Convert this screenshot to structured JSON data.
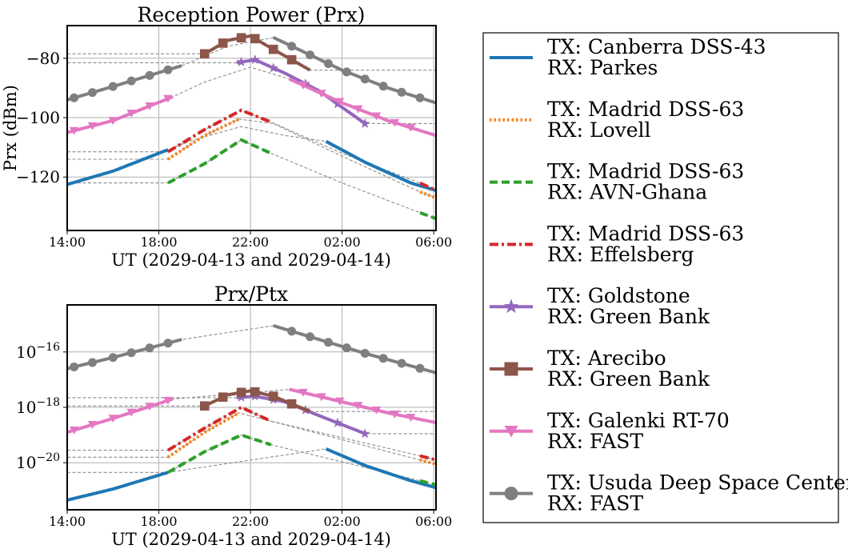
{
  "chart_data": [
    {
      "type": "line",
      "title": "Reception Power (Prx)",
      "xlabel": "UT (2029-04-13 and 2029-04-14)",
      "ylabel": "Prx (dBm)",
      "x_ticks": [
        "14:00",
        "18:00",
        "22:00",
        "02:00",
        "06:00"
      ],
      "x_range_hours": [
        14,
        30.1
      ],
      "y_scale": "linear",
      "ylim": [
        -138,
        -69
      ],
      "y_ticks": [
        -120,
        -100,
        -80
      ],
      "y_tick_labels": [
        "−120",
        "−100",
        "−80"
      ],
      "grid": true,
      "series": [
        {
          "name": "TX: Canberra DSS-43 RX: Parkes",
          "visible_hours": [
            [
              14.0,
              18.4
            ],
            [
              25.3,
              30.1
            ]
          ],
          "x": [
            14,
            16,
            18,
            19.5,
            21.6,
            23.5,
            25.3,
            27,
            29,
            30.1
          ],
          "y": [
            -122.5,
            -118,
            -112,
            -107.5,
            -103,
            -106,
            -108,
            -115,
            -122,
            -124.5
          ]
        },
        {
          "name": "TX: Madrid DSS-63 RX: Lovell",
          "visible_hours": [
            [
              18.4,
              21.5
            ],
            [
              29.4,
              30.1
            ]
          ],
          "x": [
            18.4,
            20,
            21.5,
            23,
            26,
            29.4,
            30.1
          ],
          "y": [
            -114,
            -106,
            -100.5,
            -102,
            -113,
            -125,
            -127
          ]
        },
        {
          "name": "TX: Madrid DSS-63 RX: AVN-Ghana",
          "visible_hours": [
            [
              18.4,
              22.9
            ],
            [
              29.4,
              30.1
            ]
          ],
          "x": [
            18.4,
            20,
            21.6,
            22.9,
            26,
            29.4,
            30.1
          ],
          "y": [
            -122,
            -115.5,
            -107.5,
            -112,
            -122,
            -132,
            -134
          ]
        },
        {
          "name": "TX: Madrid DSS-63 RX: Effelsberg",
          "visible_hours": [
            [
              18.4,
              22.9
            ],
            [
              29.4,
              30.1
            ]
          ],
          "x": [
            18.4,
            20,
            21.6,
            22.9,
            26,
            29.4,
            30.1
          ],
          "y": [
            -111.5,
            -104,
            -97.5,
            -101.5,
            -112,
            -122,
            -124.5
          ]
        },
        {
          "name": "TX: Goldstone RX: Green Bank",
          "visible_hours": [
            [
              21.4,
              27.0
            ]
          ],
          "markers_x": [
            21.6,
            22.2,
            23.0,
            24.4,
            25.8,
            27.0
          ],
          "x": [
            21.4,
            22.2,
            23.5,
            25,
            27
          ],
          "y": [
            -81.5,
            -80.5,
            -85,
            -91,
            -102
          ]
        },
        {
          "name": "TX: Arecibo RX: Green Bank",
          "visible_hours": [
            [
              20.0,
              24.6
            ]
          ],
          "markers_x": [
            20.0,
            20.8,
            21.6,
            22.2,
            23.0,
            23.8
          ],
          "x": [
            20,
            21,
            22,
            23,
            24.6
          ],
          "y": [
            -78.5,
            -74,
            -72.5,
            -77,
            -84
          ]
        },
        {
          "name": "TX: Galenki RT-70 RX: FAST",
          "visible_hours": [
            [
              14.0,
              18.6
            ],
            [
              23.7,
              30.1
            ]
          ],
          "markers_x": [
            14.3,
            15.1,
            16.0,
            16.8,
            17.6,
            18.4,
            24.3,
            25.1,
            25.9,
            26.7,
            27.5,
            28.3,
            29.0
          ],
          "x": [
            14,
            16,
            18.6,
            20,
            22,
            23.7,
            26,
            28,
            30.1
          ],
          "y": [
            -105,
            -101,
            -93,
            -88,
            -83,
            -87,
            -95,
            -101,
            -106
          ]
        },
        {
          "name": "TX: Usuda Deep Space Center RX: FAST",
          "visible_hours": [
            [
              14.0,
              19.0
            ],
            [
              23.0,
              30.1
            ]
          ],
          "markers_x": [
            14.3,
            15.1,
            16.0,
            16.8,
            17.6,
            18.4,
            23.8,
            24.6,
            25.4,
            26.2,
            27.0,
            27.8,
            28.6,
            29.4
          ],
          "x": [
            14,
            16,
            19,
            21,
            23,
            26,
            28,
            30.1
          ],
          "y": [
            -94,
            -89.5,
            -82.5,
            -76,
            -73,
            -84,
            -90,
            -95
          ]
        }
      ]
    },
    {
      "type": "line",
      "title": "Prx/Ptx",
      "xlabel": "UT (2029-04-13 and 2029-04-14)",
      "ylabel": "",
      "x_ticks": [
        "14:00",
        "18:00",
        "22:00",
        "02:00",
        "06:00"
      ],
      "x_range_hours": [
        14,
        30.1
      ],
      "y_scale": "log",
      "ylim_log10": [
        -21.7,
        -14.3
      ],
      "y_tick_exponents": [
        -20,
        -18,
        -16
      ],
      "grid": true,
      "series": [
        {
          "name": "TX: Canberra DSS-43 RX: Parkes",
          "log10_x": [
            14,
            16,
            18.4,
            25.3,
            27,
            29,
            30.1
          ],
          "log10_y": [
            -21.35,
            -20.95,
            -20.35,
            -19.5,
            -20.1,
            -20.65,
            -20.9
          ]
        },
        {
          "name": "TX: Madrid DSS-63 RX: Lovell",
          "log10_x": [
            18.4,
            20,
            21.5,
            29.4,
            30.1
          ],
          "log10_y": [
            -19.8,
            -18.9,
            -18.2,
            -19.9,
            -20.05
          ]
        },
        {
          "name": "TX: Madrid DSS-63 RX: AVN-Ghana",
          "log10_x": [
            18.4,
            20,
            21.6,
            22.9,
            29.4,
            30.1
          ],
          "log10_y": [
            -20.35,
            -19.6,
            -19.0,
            -19.35,
            -20.65,
            -20.8
          ]
        },
        {
          "name": "TX: Madrid DSS-63 RX: Effelsberg",
          "log10_x": [
            18.4,
            20,
            21.6,
            22.9,
            29.4,
            30.1
          ],
          "log10_y": [
            -19.55,
            -18.75,
            -18.0,
            -18.5,
            -19.75,
            -19.9
          ]
        },
        {
          "name": "TX: Goldstone RX: Green Bank",
          "log10_x": [
            21.4,
            22.2,
            23.5,
            25,
            27
          ],
          "log10_y": [
            -17.65,
            -17.6,
            -17.8,
            -18.3,
            -18.95
          ]
        },
        {
          "name": "TX: Arecibo RX: Green Bank",
          "log10_x": [
            20,
            21,
            22,
            23,
            24.6
          ],
          "log10_y": [
            -17.95,
            -17.55,
            -17.4,
            -17.6,
            -18.15
          ]
        },
        {
          "name": "TX: Galenki RT-70 RX: FAST",
          "log10_x": [
            14,
            16,
            18.6,
            23.7,
            26,
            28,
            30.1
          ],
          "log10_y": [
            -18.9,
            -18.4,
            -17.7,
            -17.35,
            -17.8,
            -18.2,
            -18.55
          ]
        },
        {
          "name": "TX: Usuda Deep Space Center RX: FAST",
          "log10_x": [
            14,
            16,
            19,
            23,
            25,
            27,
            30.1
          ],
          "log10_y": [
            -16.6,
            -16.2,
            -15.55,
            -15.05,
            -15.55,
            -16.05,
            -16.75
          ]
        }
      ]
    }
  ],
  "legend": [
    {
      "line1": "TX: Canberra DSS-43",
      "line2": "RX: Parkes",
      "color": "#1f77b4",
      "style": "solid",
      "marker": "none"
    },
    {
      "line1": "TX: Madrid DSS-63",
      "line2": "RX: Lovell",
      "color": "#ff7f0e",
      "style": "dotted",
      "marker": "none"
    },
    {
      "line1": "TX: Madrid DSS-63",
      "line2": "RX: AVN-Ghana",
      "color": "#2ca02c",
      "style": "dashed",
      "marker": "none"
    },
    {
      "line1": "TX: Madrid DSS-63",
      "line2": "RX: Effelsberg",
      "color": "#d62728",
      "style": "dashdot",
      "marker": "none"
    },
    {
      "line1": "TX: Goldstone",
      "line2": "RX: Green Bank",
      "color": "#9467bd",
      "style": "solid",
      "marker": "star"
    },
    {
      "line1": "TX: Arecibo",
      "line2": "RX: Green Bank",
      "color": "#8c564b",
      "style": "solid",
      "marker": "square"
    },
    {
      "line1": "TX: Galenki RT-70",
      "line2": "RX: FAST",
      "color": "#e377c2",
      "style": "solid",
      "marker": "triangle-down"
    },
    {
      "line1": "TX: Usuda Deep Space Center",
      "line2": "RX: FAST",
      "color": "#7f7f7f",
      "style": "solid",
      "marker": "circle"
    }
  ]
}
